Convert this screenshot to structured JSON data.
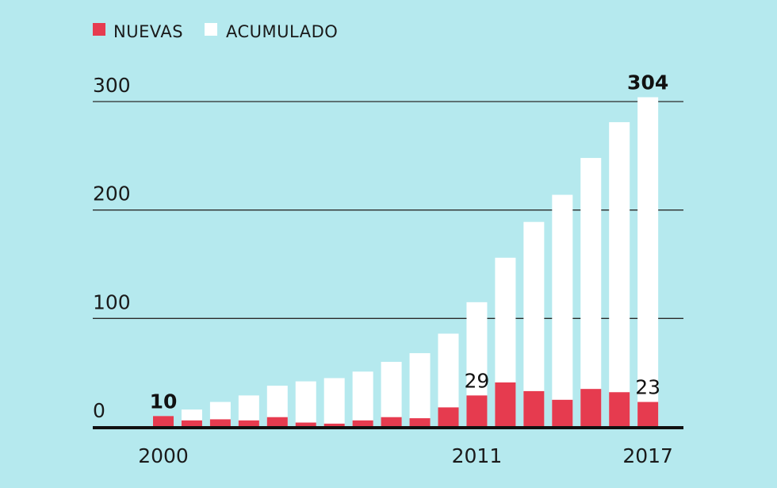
{
  "chart_data": {
    "type": "bar",
    "title": "",
    "xlabel": "",
    "ylabel": "",
    "ylim": [
      0,
      300
    ],
    "yticks": [
      0,
      100,
      200,
      300
    ],
    "x": [
      2000,
      2001,
      2002,
      2003,
      2004,
      2005,
      2006,
      2007,
      2008,
      2009,
      2010,
      2011,
      2012,
      2013,
      2014,
      2015,
      2016,
      2017
    ],
    "x_tick_labels": [
      {
        "year": 2000,
        "label": "2000"
      },
      {
        "year": 2011,
        "label": "2011"
      },
      {
        "year": 2017,
        "label": "2017"
      }
    ],
    "legend": {
      "position": "top-left",
      "entries": [
        {
          "name": "NUEVAS",
          "color": "#e63b4f"
        },
        {
          "name": "ACUMULADO",
          "color": "#ffffff"
        }
      ]
    },
    "series": [
      {
        "name": "ACUMULADO",
        "color": "#ffffff",
        "values": [
          10,
          16,
          23,
          29,
          38,
          42,
          45,
          51,
          60,
          68,
          86,
          115,
          156,
          189,
          214,
          248,
          281,
          304
        ]
      },
      {
        "name": "NUEVAS",
        "color": "#e63b4f",
        "values": [
          10,
          6,
          7,
          6,
          9,
          4,
          3,
          6,
          9,
          8,
          18,
          29,
          41,
          33,
          25,
          35,
          32,
          23
        ]
      }
    ],
    "annotations": [
      {
        "year": 2000,
        "label": "10",
        "bold": true
      },
      {
        "year": 2011,
        "label": "29",
        "bold": false
      },
      {
        "year": 2017,
        "label": "23",
        "bold": false
      },
      {
        "year": 2017,
        "label": "304",
        "bold": true,
        "target": "ACUMULADO"
      }
    ]
  }
}
